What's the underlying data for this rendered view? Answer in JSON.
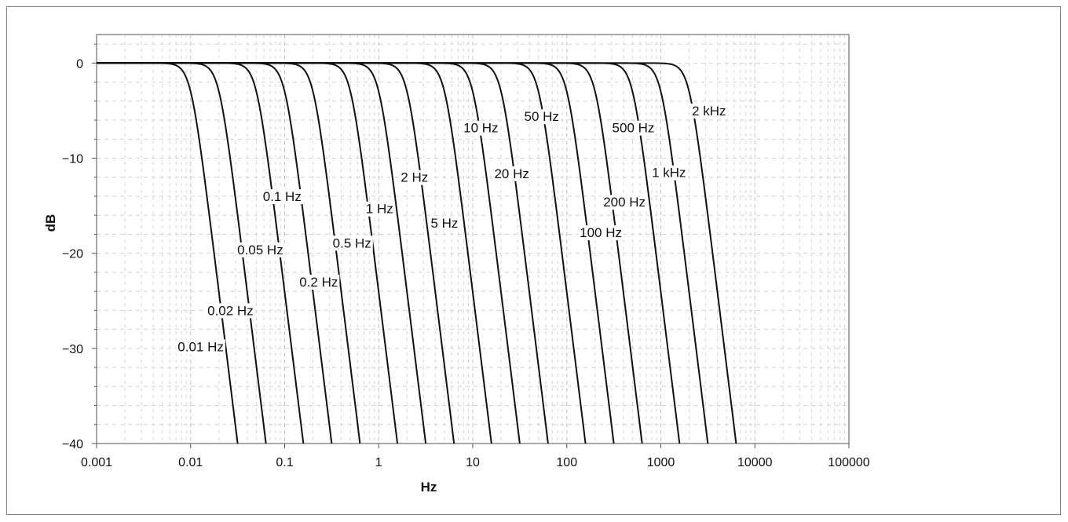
{
  "chart_data": {
    "type": "line",
    "xlabel": "Hz",
    "ylabel": "dB",
    "x_scale": "log",
    "xlim": [
      0.001,
      100000
    ],
    "ylim": [
      -40,
      3
    ],
    "x_ticks": [
      {
        "value": 0.001,
        "label": "0.001"
      },
      {
        "value": 0.01,
        "label": "0.01"
      },
      {
        "value": 0.1,
        "label": "0.1"
      },
      {
        "value": 1,
        "label": "1"
      },
      {
        "value": 10,
        "label": "10"
      },
      {
        "value": 100,
        "label": "100"
      },
      {
        "value": 1000,
        "label": "1000"
      },
      {
        "value": 10000,
        "label": "10000"
      },
      {
        "value": 100000,
        "label": "100000"
      }
    ],
    "y_ticks": [
      {
        "value": 0,
        "label": "0"
      },
      {
        "value": -10,
        "label": "−10"
      },
      {
        "value": -20,
        "label": "−20"
      },
      {
        "value": -30,
        "label": "−30"
      },
      {
        "value": -40,
        "label": "−40"
      }
    ],
    "grid": true,
    "filter_order": 4,
    "series": [
      {
        "cutoff_hz": 0.01,
        "label": "0.01 Hz",
        "label_x": 0.0128,
        "label_y": -29.8
      },
      {
        "cutoff_hz": 0.02,
        "label": "0.02 Hz",
        "label_x": 0.0265,
        "label_y": -26.0
      },
      {
        "cutoff_hz": 0.05,
        "label": "0.05 Hz",
        "label_x": 0.055,
        "label_y": -19.6
      },
      {
        "cutoff_hz": 0.1,
        "label": "0.1 Hz",
        "label_x": 0.094,
        "label_y": -14.0
      },
      {
        "cutoff_hz": 0.2,
        "label": "0.2 Hz",
        "label_x": 0.23,
        "label_y": -23.0
      },
      {
        "cutoff_hz": 0.5,
        "label": "0.5 Hz",
        "label_x": 0.52,
        "label_y": -18.9
      },
      {
        "cutoff_hz": 1,
        "label": "1 Hz",
        "label_x": 1.02,
        "label_y": -15.3
      },
      {
        "cutoff_hz": 2,
        "label": "2 Hz",
        "label_x": 2.4,
        "label_y": -12.0
      },
      {
        "cutoff_hz": 5,
        "label": "5 Hz",
        "label_x": 5.0,
        "label_y": -16.8
      },
      {
        "cutoff_hz": 10,
        "label": "10 Hz",
        "label_x": 12.2,
        "label_y": -6.8
      },
      {
        "cutoff_hz": 20,
        "label": "20 Hz",
        "label_x": 26.0,
        "label_y": -11.6
      },
      {
        "cutoff_hz": 50,
        "label": "50 Hz",
        "label_x": 54.0,
        "label_y": -5.6
      },
      {
        "cutoff_hz": 100,
        "label": "100 Hz",
        "label_x": 230.0,
        "label_y": -17.8
      },
      {
        "cutoff_hz": 200,
        "label": "200 Hz",
        "label_x": 410.0,
        "label_y": -14.6
      },
      {
        "cutoff_hz": 500,
        "label": "500 Hz",
        "label_x": 510.0,
        "label_y": -6.8
      },
      {
        "cutoff_hz": 1000,
        "label": "1 kHz",
        "label_x": 1220.0,
        "label_y": -11.5
      },
      {
        "cutoff_hz": 2000,
        "label": "2 kHz",
        "label_x": 3250.0,
        "label_y": -5.0
      }
    ]
  }
}
